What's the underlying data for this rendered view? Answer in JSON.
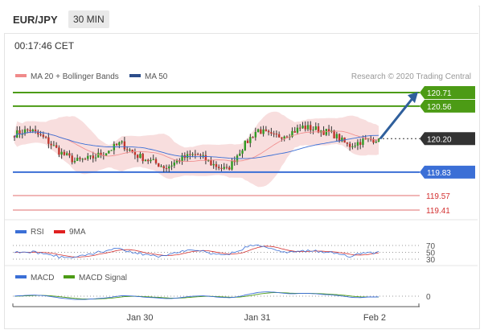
{
  "header": {
    "pair": "EUR/JPY",
    "timeframe": "30 MIN",
    "time": "00:17:46 CET"
  },
  "legend": {
    "ma_bb": "MA 20 + Bollinger Bands",
    "ma50": "MA 50",
    "research": "Research © 2020 Trading Central",
    "rsi": "RSI",
    "rsi_ma": "9MA",
    "macd": "MACD",
    "macd_signal": "MACD Signal"
  },
  "colors": {
    "resistance": "#4c9b15",
    "current": "#333333",
    "support": "#3b6fd6",
    "pivot_low": "#d33030",
    "bullish": "#2f9a22",
    "bearish": "#c0352c",
    "bands": "#f2c2c2",
    "ma50": "#3b6fd6",
    "arrow": "#2f5f9c",
    "rsi": "#3b6fd6",
    "rsi_ma": "#d33030",
    "macd": "#3b6fd6",
    "macd_signal": "#4c9b15"
  },
  "chart_data": {
    "type": "candlestick",
    "y_range": [
      119.3,
      120.85
    ],
    "levels": [
      {
        "value": 120.71,
        "label": "120.71",
        "kind": "resistance"
      },
      {
        "value": 120.56,
        "label": "120.56",
        "kind": "resistance"
      },
      {
        "value": 120.2,
        "label": "120.20",
        "kind": "current"
      },
      {
        "value": 119.83,
        "label": "119.83",
        "kind": "support"
      },
      {
        "value": 119.57,
        "label": "119.57",
        "kind": "pivot_low"
      },
      {
        "value": 119.41,
        "label": "119.41",
        "kind": "pivot_low"
      }
    ],
    "path_anchors": [
      120.25,
      120.3,
      120.2,
      120.05,
      119.95,
      119.98,
      120.05,
      120.15,
      120.02,
      119.95,
      119.88,
      119.98,
      120.03,
      119.92,
      119.85,
      120.1,
      120.3,
      120.22,
      120.25,
      120.33,
      120.3,
      120.25,
      120.12,
      120.18,
      120.2
    ],
    "forecast": {
      "from": 120.2,
      "to": 120.7
    },
    "rsi_levels": [
      70,
      50,
      30
    ],
    "x_ticks": [
      "Jan 30",
      "Jan 31",
      "Feb 2"
    ],
    "macd_zero_label": "0"
  }
}
